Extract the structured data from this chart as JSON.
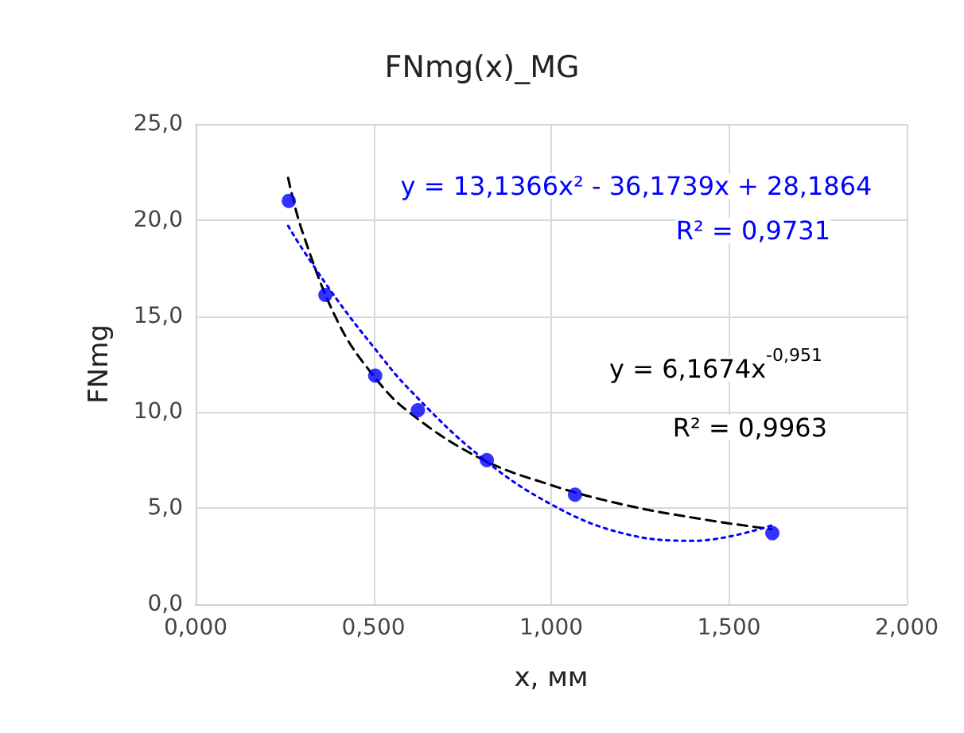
{
  "chart_data": {
    "type": "scatter",
    "title": "FNmg(x)_MG",
    "xlabel": "x, мм",
    "ylabel": "FNmg",
    "xlim": [
      0,
      2
    ],
    "xticks": [
      {
        "value": 0,
        "label": "0,000"
      },
      {
        "value": 0.5,
        "label": "0,500"
      },
      {
        "value": 1,
        "label": "1,000"
      },
      {
        "value": 1.5,
        "label": "1,500"
      },
      {
        "value": 2,
        "label": "2,000"
      }
    ],
    "ylim": [
      0,
      25
    ],
    "yticks": [
      {
        "value": 0,
        "label": "0,0"
      },
      {
        "value": 5,
        "label": "5,0"
      },
      {
        "value": 10,
        "label": "10,0"
      },
      {
        "value": 15,
        "label": "15,0"
      },
      {
        "value": 20,
        "label": "20,0"
      },
      {
        "value": 25,
        "label": "25,0"
      }
    ],
    "grid": true,
    "series": [
      {
        "marker": "circle",
        "color": "#0000ff",
        "x": [
          0.262,
          0.365,
          0.505,
          0.625,
          0.819,
          1.067,
          1.622
        ],
        "values": [
          21.0,
          16.1,
          11.9,
          10.1,
          7.5,
          5.7,
          3.7
        ]
      },
      {
        "type": "line",
        "marker": "none",
        "line_style": "dashed",
        "color": "#000000",
        "x": [
          0.26,
          0.3,
          0.4,
          0.5,
          0.6,
          0.8,
          1.0,
          1.2,
          1.4,
          1.62
        ],
        "values": [
          22.2,
          19.4,
          14.7,
          11.9,
          10.0,
          7.6,
          6.2,
          5.2,
          4.5,
          3.9
        ]
      },
      {
        "type": "line",
        "marker": "none",
        "line_style": "dotted",
        "color": "#0000ff",
        "x": [
          0.26,
          0.3,
          0.4,
          0.5,
          0.6,
          0.8,
          1.0,
          1.2,
          1.4,
          1.62
        ],
        "values": [
          19.7,
          18.5,
          15.8,
          13.4,
          11.2,
          7.7,
          5.2,
          3.7,
          3.3,
          4.1
        ]
      }
    ],
    "annotations": [
      "y = 13,1366x² - 36,1739x + 28,1864",
      "R² = 0,9731",
      "y = 6,1674x$^{-0,951}$",
      "R² = 0,9963"
    ]
  }
}
